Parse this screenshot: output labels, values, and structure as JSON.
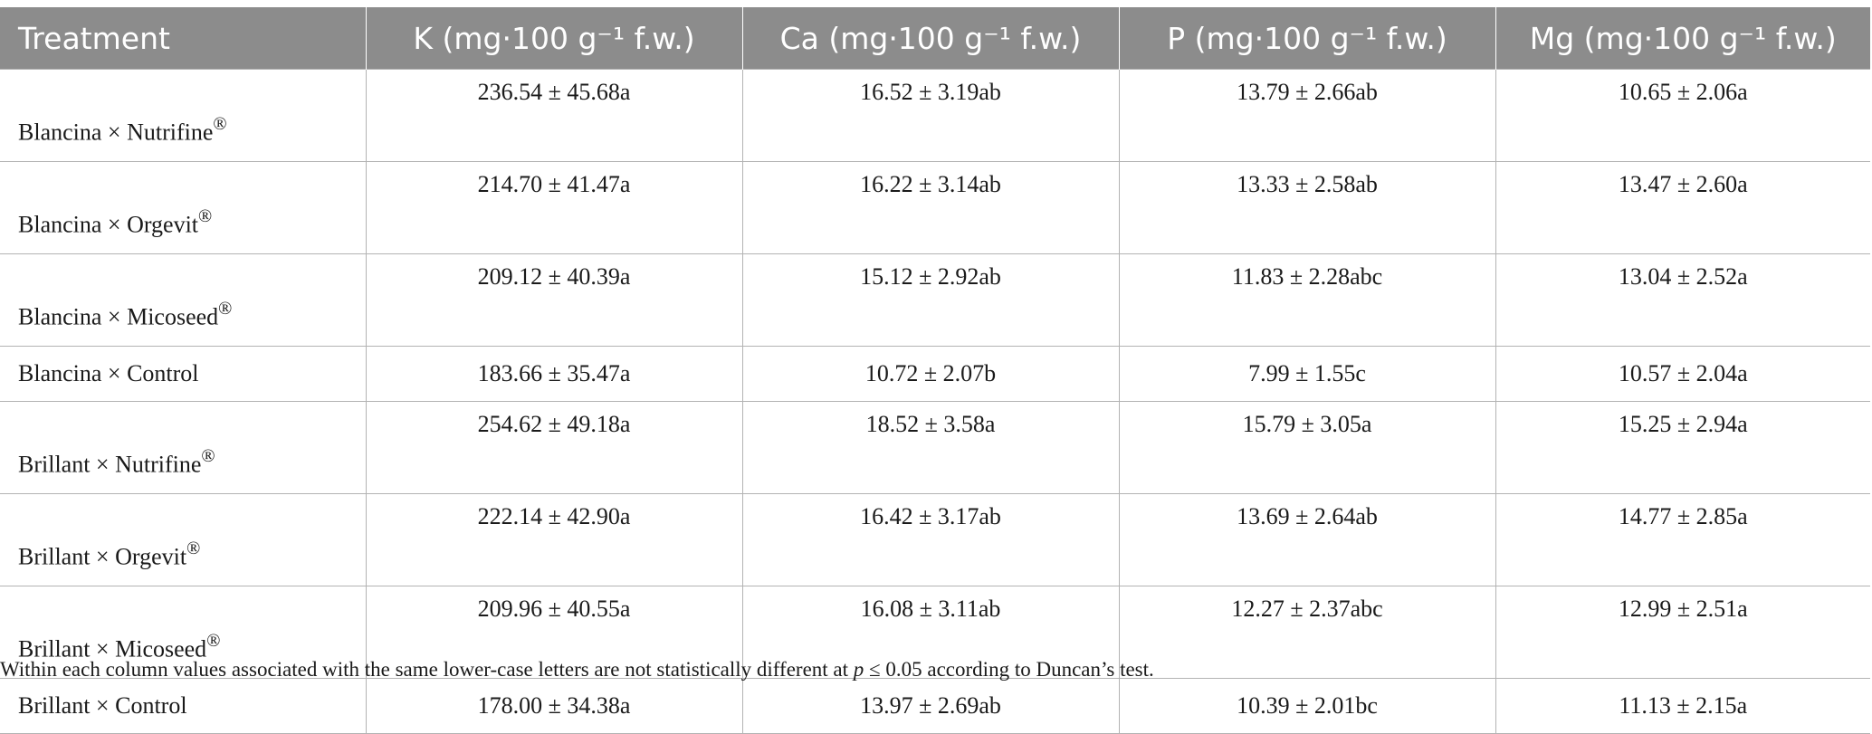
{
  "table": {
    "headers": [
      "Treatment",
      "K (mg·100 g⁻¹ f.w.)",
      "Ca (mg·100 g⁻¹ f.w.)",
      "P (mg·100 g⁻¹ f.w.)",
      "Mg (mg·100 g⁻¹ f.w.)"
    ],
    "rows": [
      {
        "treatment": "Blancina × Nutrifine",
        "registered": true,
        "k": "236.54 ± 45.68a",
        "ca": "16.52 ± 3.19ab",
        "p": "13.79 ± 2.66ab",
        "mg": "10.65 ± 2.06a"
      },
      {
        "treatment": "Blancina × Orgevit",
        "registered": true,
        "k": "214.70 ± 41.47a",
        "ca": "16.22 ± 3.14ab",
        "p": "13.33 ± 2.58ab",
        "mg": "13.47 ± 2.60a"
      },
      {
        "treatment": "Blancina × Micoseed",
        "registered": true,
        "k": "209.12 ± 40.39a",
        "ca": "15.12 ± 2.92ab",
        "p": "11.83 ± 2.28abc",
        "mg": "13.04 ± 2.52a"
      },
      {
        "treatment": "Blancina × Control",
        "registered": false,
        "k": "183.66 ± 35.47a",
        "ca": "10.72 ± 2.07b",
        "p": "7.99 ± 1.55c",
        "mg": "10.57 ± 2.04a"
      },
      {
        "treatment": "Brillant × Nutrifine",
        "registered": true,
        "k": "254.62 ± 49.18a",
        "ca": "18.52 ± 3.58a",
        "p": "15.79 ± 3.05a",
        "mg": "15.25 ± 2.94a"
      },
      {
        "treatment": "Brillant × Orgevit",
        "registered": true,
        "k": "222.14 ± 42.90a",
        "ca": "16.42 ± 3.17ab",
        "p": "13.69 ± 2.64ab",
        "mg": "14.77 ± 2.85a"
      },
      {
        "treatment": "Brillant × Micoseed",
        "registered": true,
        "k": "209.96 ± 40.55a",
        "ca": "16.08 ± 3.11ab",
        "p": "12.27 ± 2.37abc",
        "mg": "12.99 ± 2.51a"
      },
      {
        "treatment": "Brillant × Control",
        "registered": false,
        "k": "178.00 ± 34.38a",
        "ca": "13.97 ± 2.69ab",
        "p": "10.39 ± 2.01bc",
        "mg": "11.13 ± 2.15a"
      }
    ],
    "registered_mark": "®"
  },
  "footnote": {
    "before": "Within each column values associated with the same lower-case letters are not statistically different at ",
    "variable": "p",
    "after": " ≤ 0.05 according to Duncan’s test."
  },
  "colors": {
    "header_bg": "#8c8c8c",
    "header_text": "#ffffff",
    "grid": "#b3b3b3",
    "text": "#1a1a1a"
  }
}
